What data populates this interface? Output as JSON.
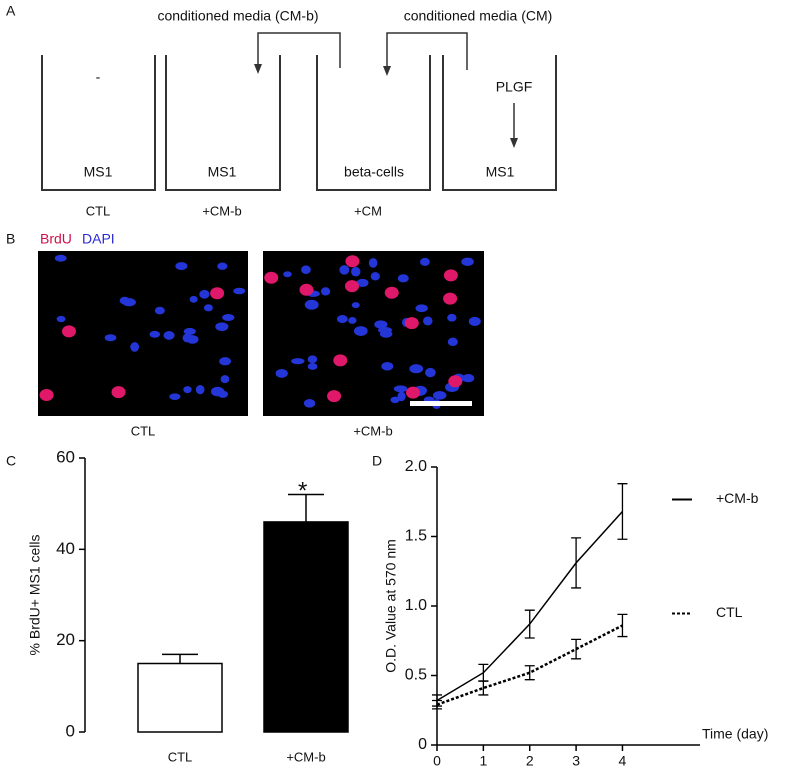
{
  "panel_labels": [
    "A",
    "B",
    "C",
    "D"
  ],
  "diagram": {
    "arrow_labels": [
      "conditioned media (CM-b)",
      "conditioned media (CM)"
    ],
    "wells": [
      {
        "content": "-",
        "label": "MS1",
        "caption": "CTL"
      },
      {
        "label": "MS1",
        "caption": "+CM-b"
      },
      {
        "label": "beta-cells",
        "caption": "+CM"
      },
      {
        "factor": "PLGF",
        "label": "MS1"
      }
    ]
  },
  "images": {
    "stains": [
      "BrdU",
      "DAPI"
    ],
    "captions": [
      "CTL",
      "+CM-b"
    ]
  },
  "chart_data": [
    {
      "type": "bar",
      "categories": [
        "CTL",
        "+CM-b"
      ],
      "values": [
        15,
        46
      ],
      "errors": [
        2,
        6
      ],
      "colors": [
        "#ffffff",
        "#000000"
      ],
      "ylabel": "% BrdU+ MS1 cells",
      "ylim": [
        0,
        60
      ],
      "yticks": [
        0,
        20,
        40,
        60
      ],
      "annotation": "*"
    },
    {
      "type": "line",
      "x": [
        0,
        1,
        2,
        3,
        4
      ],
      "xlim": [
        0,
        5.5
      ],
      "xticks": [
        0,
        1,
        2,
        3,
        4
      ],
      "ylim": [
        0,
        2
      ],
      "yticks": [
        0,
        0.5,
        {
          "value": 1,
          "label": "1.0"
        },
        1.5,
        {
          "value": 2,
          "label": "2.0"
        }
      ],
      "ylabel": "O.D. Value at 570 nm",
      "xlabel": "Time (day)",
      "series": [
        {
          "name": "+CM-b",
          "color": "#000000",
          "dashed": false,
          "values": [
            0.32,
            0.52,
            0.87,
            1.31,
            1.68
          ],
          "errors": [
            0.04,
            0.06,
            0.1,
            0.18,
            0.2
          ]
        },
        {
          "name": "CTL",
          "color": "#000000",
          "dashed": true,
          "values": [
            0.29,
            0.41,
            0.52,
            0.69,
            0.86
          ],
          "errors": [
            0.03,
            0.05,
            0.05,
            0.07,
            0.08
          ]
        }
      ]
    }
  ]
}
